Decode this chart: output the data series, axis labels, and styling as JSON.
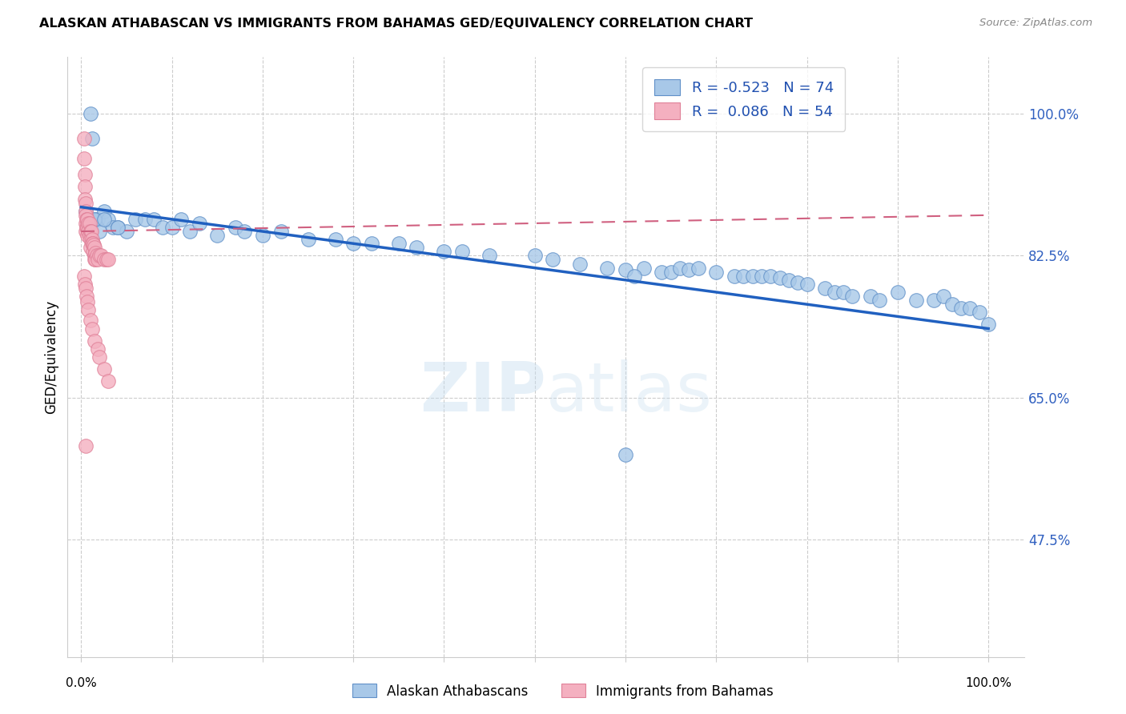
{
  "title": "ALASKAN ATHABASCAN VS IMMIGRANTS FROM BAHAMAS GED/EQUIVALENCY CORRELATION CHART",
  "source": "Source: ZipAtlas.com",
  "ylabel": "GED/Equivalency",
  "ytick_labels": [
    "47.5%",
    "65.0%",
    "82.5%",
    "100.0%"
  ],
  "ytick_values": [
    0.475,
    0.65,
    0.825,
    1.0
  ],
  "legend_label1": "Alaskan Athabascans",
  "legend_label2": "Immigrants from Bahamas",
  "R1": "-0.523",
  "N1": "74",
  "R2": "0.086",
  "N2": "54",
  "blue_color": "#a8c8e8",
  "pink_color": "#f4b0c0",
  "blue_edge_color": "#6090c8",
  "pink_edge_color": "#e08098",
  "blue_line_color": "#2060c0",
  "pink_line_color": "#d06080",
  "blue_scatter_x": [
    0.005,
    0.01,
    0.012,
    0.015,
    0.018,
    0.02,
    0.025,
    0.03,
    0.035,
    0.04,
    0.05,
    0.06,
    0.07,
    0.08,
    0.09,
    0.1,
    0.11,
    0.12,
    0.13,
    0.15,
    0.17,
    0.18,
    0.2,
    0.22,
    0.25,
    0.28,
    0.3,
    0.32,
    0.35,
    0.37,
    0.4,
    0.42,
    0.45,
    0.5,
    0.52,
    0.55,
    0.58,
    0.6,
    0.62,
    0.64,
    0.65,
    0.66,
    0.67,
    0.68,
    0.7,
    0.72,
    0.73,
    0.74,
    0.75,
    0.76,
    0.77,
    0.78,
    0.79,
    0.8,
    0.82,
    0.83,
    0.84,
    0.85,
    0.87,
    0.88,
    0.9,
    0.92,
    0.94,
    0.95,
    0.96,
    0.97,
    0.98,
    0.99,
    1.0,
    0.61,
    0.015,
    0.025,
    0.04,
    0.6
  ],
  "blue_scatter_y": [
    0.88,
    1.0,
    0.97,
    0.87,
    0.87,
    0.855,
    0.88,
    0.87,
    0.86,
    0.86,
    0.855,
    0.87,
    0.87,
    0.87,
    0.86,
    0.86,
    0.87,
    0.855,
    0.865,
    0.85,
    0.86,
    0.855,
    0.85,
    0.855,
    0.845,
    0.845,
    0.84,
    0.84,
    0.84,
    0.835,
    0.83,
    0.83,
    0.825,
    0.825,
    0.82,
    0.815,
    0.81,
    0.808,
    0.81,
    0.805,
    0.805,
    0.81,
    0.808,
    0.81,
    0.805,
    0.8,
    0.8,
    0.8,
    0.8,
    0.8,
    0.798,
    0.795,
    0.792,
    0.79,
    0.785,
    0.78,
    0.78,
    0.775,
    0.775,
    0.77,
    0.78,
    0.77,
    0.77,
    0.775,
    0.765,
    0.76,
    0.76,
    0.755,
    0.74,
    0.8,
    0.87,
    0.87,
    0.86,
    0.58
  ],
  "pink_scatter_x": [
    0.003,
    0.003,
    0.004,
    0.004,
    0.004,
    0.005,
    0.005,
    0.005,
    0.005,
    0.005,
    0.006,
    0.006,
    0.007,
    0.007,
    0.007,
    0.008,
    0.008,
    0.009,
    0.009,
    0.01,
    0.01,
    0.01,
    0.011,
    0.012,
    0.012,
    0.013,
    0.013,
    0.014,
    0.015,
    0.015,
    0.015,
    0.016,
    0.016,
    0.017,
    0.018,
    0.02,
    0.022,
    0.025,
    0.028,
    0.03,
    0.003,
    0.004,
    0.005,
    0.006,
    0.007,
    0.008,
    0.01,
    0.012,
    0.015,
    0.018,
    0.02,
    0.025,
    0.03,
    0.005
  ],
  "pink_scatter_y": [
    0.97,
    0.945,
    0.925,
    0.91,
    0.895,
    0.89,
    0.88,
    0.875,
    0.865,
    0.855,
    0.87,
    0.86,
    0.87,
    0.86,
    0.85,
    0.865,
    0.855,
    0.865,
    0.85,
    0.855,
    0.845,
    0.835,
    0.855,
    0.845,
    0.84,
    0.84,
    0.83,
    0.838,
    0.835,
    0.825,
    0.82,
    0.828,
    0.82,
    0.825,
    0.82,
    0.825,
    0.825,
    0.82,
    0.82,
    0.82,
    0.8,
    0.79,
    0.785,
    0.775,
    0.768,
    0.758,
    0.745,
    0.735,
    0.72,
    0.71,
    0.7,
    0.685,
    0.67,
    0.59
  ],
  "xlim": [
    -0.015,
    1.04
  ],
  "ylim": [
    0.33,
    1.07
  ],
  "xline_start": 0.0,
  "xline_end": 1.0,
  "blue_line_y0": 0.885,
  "blue_line_y1": 0.735,
  "pink_line_y0": 0.855,
  "pink_line_y1": 0.875
}
